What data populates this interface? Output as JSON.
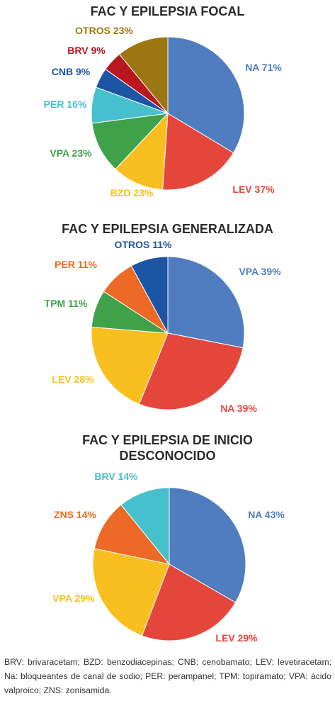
{
  "colors": {
    "blue": "#4f7dc0",
    "red": "#e5463c",
    "yellow": "#f8bf1f",
    "green": "#3fa24b",
    "cyan": "#47c0cd",
    "navy": "#1d55a5",
    "darkred": "#b9171f",
    "olive": "#9c7611",
    "orange": "#ec6a25"
  },
  "chart_data": [
    {
      "type": "pie",
      "title": "FAC Y EPILEPSIA FOCAL",
      "slices": [
        {
          "label": "NA",
          "value_text": "71%",
          "share": 32.3,
          "color": "blue"
        },
        {
          "label": "LEV",
          "value_text": "37%",
          "share": 16.8,
          "color": "red"
        },
        {
          "label": "BZD",
          "value_text": "23%",
          "share": 10.5,
          "color": "yellow"
        },
        {
          "label": "VPA",
          "value_text": "23%",
          "share": 10.5,
          "color": "green"
        },
        {
          "label": "PER",
          "value_text": "16%",
          "share": 7.3,
          "color": "cyan"
        },
        {
          "label": "CNB",
          "value_text": "9%",
          "share": 4.1,
          "color": "navy"
        },
        {
          "label": "BRV",
          "value_text": "9%",
          "share": 4.1,
          "color": "darkred"
        },
        {
          "label": "OTROS",
          "value_text": "23%",
          "share": 10.5,
          "color": "olive"
        }
      ]
    },
    {
      "type": "pie",
      "title": "FAC Y EPILEPSIA GENERALIZADA",
      "slices": [
        {
          "label": "VPA",
          "value_text": "39%",
          "share": 39,
          "color": "blue"
        },
        {
          "label": "NA",
          "value_text": "39%",
          "share": 39,
          "color": "red"
        },
        {
          "label": "LEV",
          "value_text": "28%",
          "share": 28,
          "color": "yellow"
        },
        {
          "label": "TPM",
          "value_text": "11%",
          "share": 11,
          "color": "green"
        },
        {
          "label": "PER",
          "value_text": "11%",
          "share": 11,
          "color": "orange"
        },
        {
          "label": "OTROS",
          "value_text": "11%",
          "share": 11,
          "color": "navy"
        }
      ]
    },
    {
      "type": "pie",
      "title": "FAC Y EPILEPSIA DE INICIO DESCONOCIDO",
      "slices": [
        {
          "label": "NA",
          "value_text": "43%",
          "share": 43,
          "color": "blue"
        },
        {
          "label": "LEV",
          "value_text": "29%",
          "share": 29,
          "color": "red"
        },
        {
          "label": "VPA",
          "value_text": "29%",
          "share": 29,
          "color": "yellow"
        },
        {
          "label": "ZNS",
          "value_text": "14%",
          "share": 14,
          "color": "orange"
        },
        {
          "label": "BRV",
          "value_text": "14%",
          "share": 14,
          "color": "cyan"
        }
      ]
    }
  ],
  "caption": "BRV: brivaracetam; BZD: benzodiacepinas; CNB: cenobamato; LEV: levetiracetam; Na: bloqueantes de canal de sodio; PER: perampanel; TPM: topiramato; VPA: ácido valproico; ZNS: zonisamida."
}
